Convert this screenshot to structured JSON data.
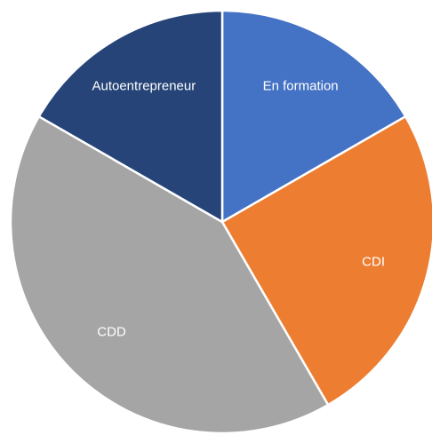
{
  "chart_data": {
    "type": "pie",
    "categories": [
      "En formation",
      "CDI",
      "CDD",
      "Autoentrepreneur"
    ],
    "values": [
      16.7,
      25,
      41.7,
      16.7
    ],
    "colors": [
      "#4472c4",
      "#ed7d31",
      "#a5a5a5",
      "#264478"
    ]
  }
}
